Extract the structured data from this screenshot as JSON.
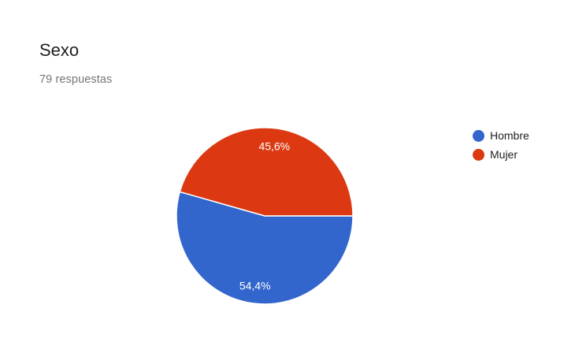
{
  "header": {
    "title": "Sexo",
    "subtitle": "79 respuestas"
  },
  "chart_data": {
    "type": "pie",
    "slices": [
      {
        "label": "Hombre",
        "value": 54.4,
        "display": "54,4%",
        "color": "#3366cc"
      },
      {
        "label": "Mujer",
        "value": 45.6,
        "display": "45,6%",
        "color": "#dc3912"
      }
    ],
    "legend_position": "right"
  }
}
